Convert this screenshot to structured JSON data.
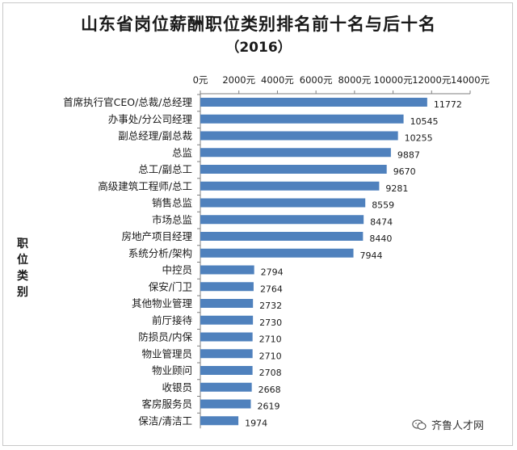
{
  "chart_data": {
    "type": "bar",
    "orientation": "horizontal",
    "title": "山东省岗位薪酬职位类别排名前十名与后十名",
    "subtitle": "（2016）",
    "ylabel": "职位类别",
    "xlabel": "",
    "xlim": [
      0,
      14000
    ],
    "x_ticks": [
      "0元",
      "2000元",
      "4000元",
      "6000元",
      "8000元",
      "10000元",
      "12000元",
      "14000元"
    ],
    "x_axis_position": "top",
    "bar_color": "#4f81bd",
    "categories": [
      "首席执行官CEO/总裁/总经理",
      "办事处/分公司经理",
      "副总经理/副总裁",
      "总监",
      "总工/副总工",
      "高级建筑工程师/总工",
      "销售总监",
      "市场总监",
      "房地产项目经理",
      "系统分析/架构",
      "中控员",
      "保安/门卫",
      "其他物业管理",
      "前厅接待",
      "防损员/内保",
      "物业管理员",
      "物业顾问",
      "收银员",
      "客房服务员",
      "保洁/清洁工"
    ],
    "values": [
      11772,
      10545,
      10255,
      9887,
      9670,
      9281,
      8559,
      8474,
      8440,
      7944,
      2794,
      2764,
      2732,
      2730,
      2710,
      2710,
      2708,
      2668,
      2619,
      1974
    ],
    "grid": false,
    "legend": "none"
  },
  "watermark": {
    "text": "齐鲁人才网",
    "icon": "wechat-icon"
  }
}
